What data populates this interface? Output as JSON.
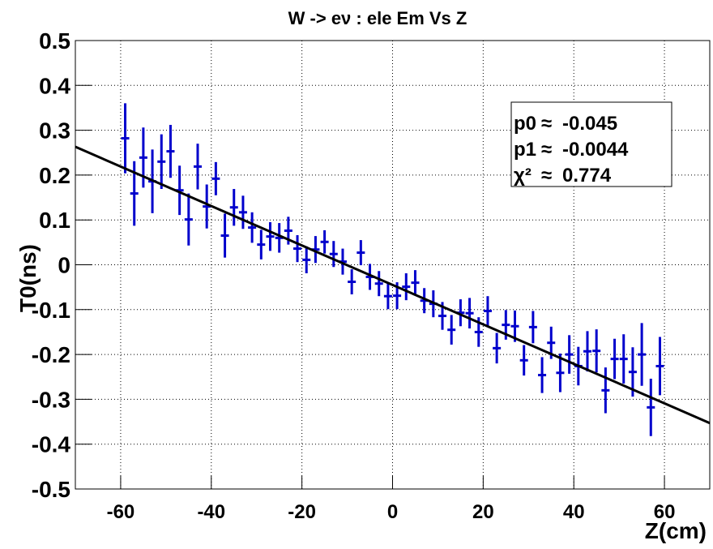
{
  "chart_data": {
    "type": "errorbar",
    "title": "W -> eν : ele Em Vs Z",
    "x_label": "Z(cm)",
    "y_label": "T0(ns)",
    "x": [
      -59,
      -57,
      -55,
      -53,
      -51,
      -49,
      -47,
      -45,
      -43,
      -41,
      -39,
      -37,
      -35,
      -33,
      -31,
      -29,
      -27,
      -25,
      -23,
      -21,
      -19,
      -17,
      -15,
      -13,
      -11,
      -9,
      -7,
      -5,
      -3,
      -1,
      1,
      3,
      5,
      7,
      9,
      11,
      13,
      15,
      17,
      19,
      21,
      23,
      25,
      27,
      29,
      31,
      33,
      35,
      37,
      39,
      41,
      43,
      45,
      47,
      49,
      51,
      53,
      55,
      57,
      59
    ],
    "series": [
      {
        "name": "data",
        "color": "#0000cc",
        "values": [
          0.282,
          0.159,
          0.239,
          0.186,
          0.23,
          0.253,
          0.166,
          0.101,
          0.219,
          0.13,
          0.192,
          0.065,
          0.128,
          0.117,
          0.083,
          0.045,
          0.063,
          0.06,
          0.076,
          0.036,
          0.011,
          0.034,
          0.051,
          0.024,
          0.007,
          -0.038,
          0.027,
          -0.027,
          -0.042,
          -0.07,
          -0.069,
          -0.049,
          -0.04,
          -0.08,
          -0.087,
          -0.114,
          -0.145,
          -0.107,
          -0.108,
          -0.15,
          -0.103,
          -0.186,
          -0.134,
          -0.137,
          -0.213,
          -0.139,
          -0.246,
          -0.174,
          -0.241,
          -0.2,
          -0.226,
          -0.193,
          -0.192,
          -0.28,
          -0.21,
          -0.21,
          -0.239,
          -0.2,
          -0.318,
          -0.226
        ],
        "errors": [
          0.078,
          0.072,
          0.067,
          0.071,
          0.061,
          0.059,
          0.055,
          0.058,
          0.051,
          0.049,
          0.037,
          0.049,
          0.041,
          0.037,
          0.034,
          0.033,
          0.032,
          0.033,
          0.031,
          0.03,
          0.03,
          0.03,
          0.026,
          0.029,
          0.029,
          0.028,
          0.028,
          0.029,
          0.028,
          0.029,
          0.03,
          0.03,
          0.028,
          0.028,
          0.03,
          0.031,
          0.033,
          0.03,
          0.034,
          0.033,
          0.033,
          0.034,
          0.033,
          0.035,
          0.034,
          0.036,
          0.04,
          0.036,
          0.043,
          0.043,
          0.043,
          0.045,
          0.048,
          0.051,
          0.045,
          0.055,
          0.055,
          0.07,
          0.064,
          0.065
        ]
      }
    ],
    "fit": {
      "color": "#000000",
      "p0": -0.045,
      "p1": -0.0044
    },
    "stats": {
      "symbol": "≈",
      "entries": [
        {
          "label": "p0",
          "value": -0.045
        },
        {
          "label": "p1",
          "value": -0.0044
        },
        {
          "label": "χ²",
          "value": 0.774
        }
      ]
    },
    "xlim": [
      -70,
      70
    ],
    "ylim": [
      -0.5,
      0.5
    ],
    "xticks": [
      -60,
      -40,
      -20,
      0,
      20,
      40,
      60
    ],
    "yticks": [
      -0.5,
      -0.4,
      -0.3,
      -0.2,
      -0.1,
      0,
      0.1,
      0.2,
      0.3,
      0.4,
      0.5
    ],
    "grid": true
  }
}
